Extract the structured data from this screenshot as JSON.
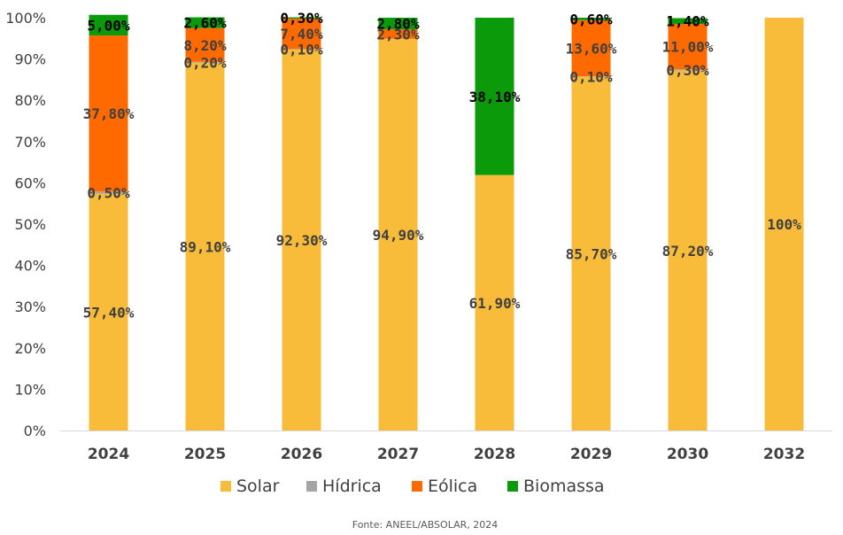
{
  "chart_data": {
    "type": "bar",
    "stacked": true,
    "categories": [
      "2024",
      "2025",
      "2026",
      "2027",
      "2028",
      "2029",
      "2030",
      "2032"
    ],
    "series": [
      {
        "name": "Solar",
        "color": "#F9BC3A",
        "label_color": "#404040",
        "values": [
          57.4,
          89.1,
          92.3,
          94.9,
          61.9,
          85.7,
          87.2,
          100
        ],
        "labels": [
          "57,40%",
          "89,10%",
          "92,30%",
          "94,90%",
          "61,90%",
          "85,70%",
          "87,20%",
          "100%"
        ]
      },
      {
        "name": "Hídrica",
        "color": "#A5A5A5",
        "label_color": "#404040",
        "values": [
          0.5,
          0.2,
          0.1,
          0,
          0,
          0.1,
          0.3,
          0
        ],
        "labels": [
          "0,50%",
          "0,20%",
          "0,10%",
          "",
          "",
          "0,10%",
          "0,30%",
          ""
        ]
      },
      {
        "name": "Eólica",
        "color": "#FF6A00",
        "label_color": "#404040",
        "values": [
          37.8,
          8.2,
          7.4,
          2.3,
          0,
          13.6,
          11.0,
          0
        ],
        "labels": [
          "37,80%",
          "8,20%",
          "7,40%",
          "2,30%",
          "",
          "13,60%",
          "11,00%",
          ""
        ]
      },
      {
        "name": "Biomassa",
        "color": "#0A9A0A",
        "label_color": "#000000",
        "values": [
          5.0,
          2.6,
          0.3,
          2.8,
          38.1,
          0.6,
          1.4,
          0
        ],
        "labels": [
          "5,00%",
          "2,60%",
          "0,30%",
          "2,80%",
          "38,10%",
          "0,60%",
          "1,40%",
          ""
        ]
      }
    ],
    "y_ticks": [
      "0%",
      "10%",
      "20%",
      "30%",
      "40%",
      "50%",
      "60%",
      "70%",
      "80%",
      "90%",
      "100%"
    ],
    "ylim": [
      0,
      100
    ],
    "grid": false,
    "legend_position": "bottom"
  },
  "footer": {
    "source": "Fonte: ANEEL/ABSOLAR, 2024"
  }
}
